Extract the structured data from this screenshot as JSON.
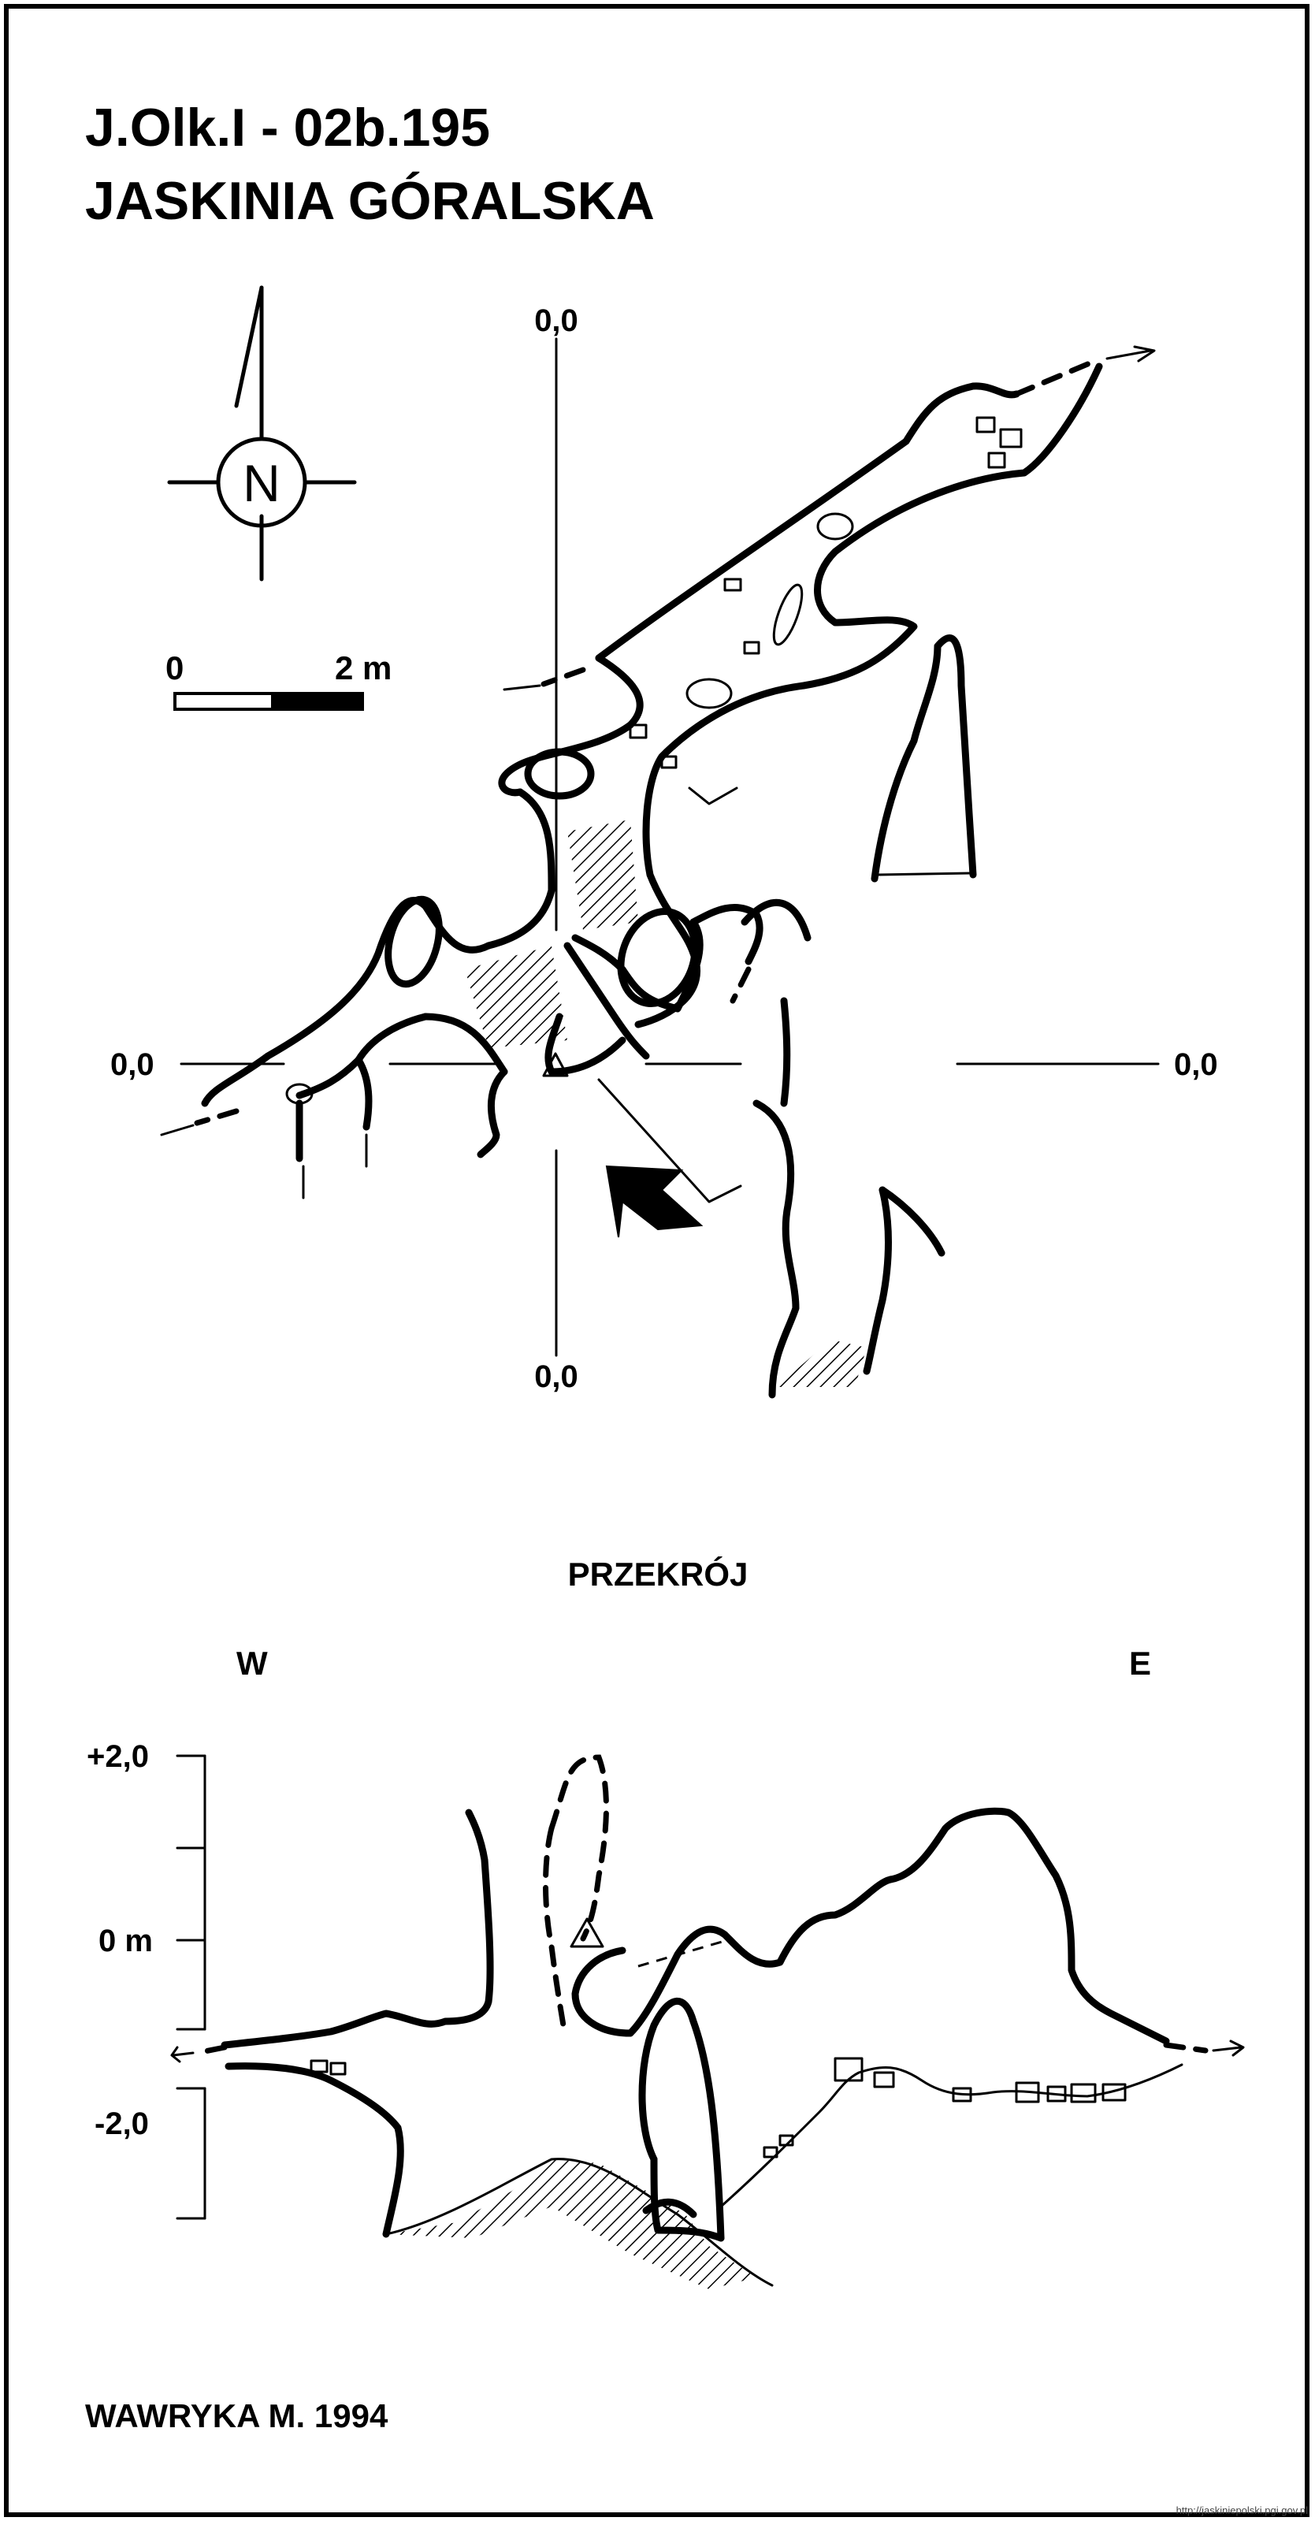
{
  "title": {
    "line1": "J.Olk.I - 02b.195",
    "line2": "JASKINIA GÓRALSKA"
  },
  "compass": {
    "letter": "N",
    "icon": "north-arrow-icon"
  },
  "scale_bar": {
    "start_label": "0",
    "end_label": "2 m"
  },
  "plan": {
    "axis_labels": {
      "top": "0,0",
      "left": "0,0",
      "right": "0,0",
      "bottom": "0,0"
    },
    "entrance_icon": "entrance-arrow-icon"
  },
  "section": {
    "title": "PRZEKRÓJ",
    "west": "W",
    "east": "E",
    "scale_labels": {
      "top": "+2,0",
      "middle": "0 m",
      "bottom": "-2,0"
    }
  },
  "author": "WAWRYKA M. 1994",
  "footer_url": "http://jaskiniepolski.pgi.gov.pl",
  "colors": {
    "ink": "#000000",
    "paper": "#ffffff"
  }
}
